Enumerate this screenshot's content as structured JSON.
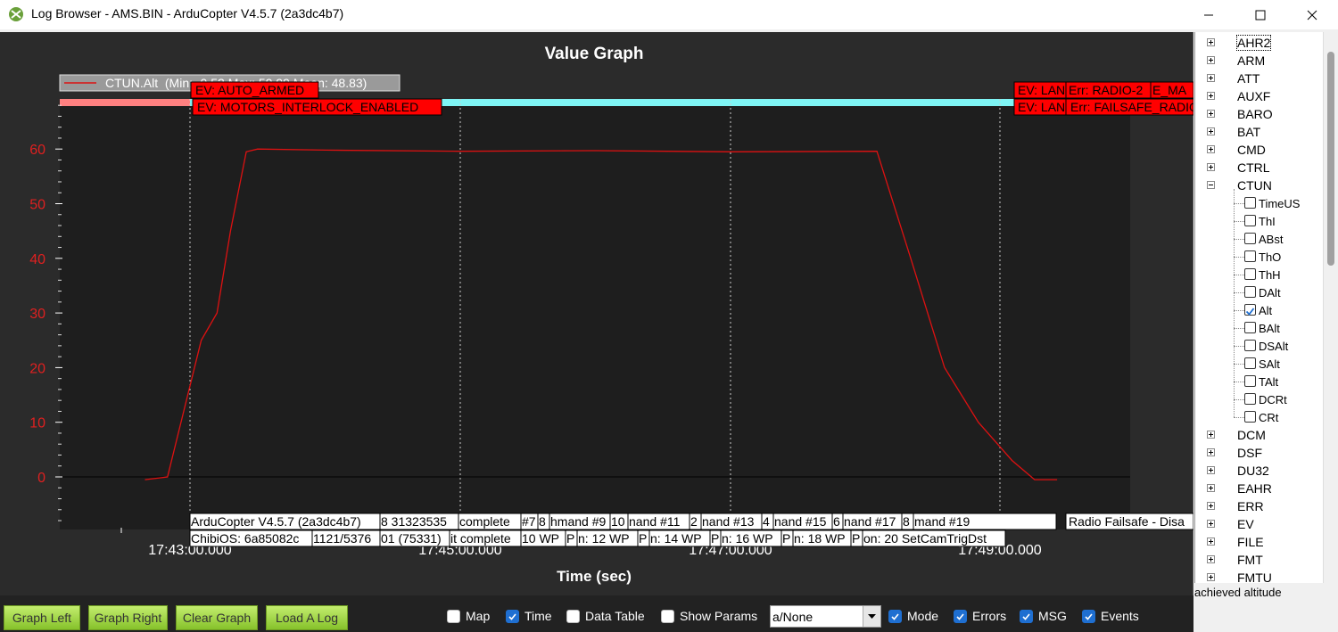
{
  "window": {
    "title": "Log Browser - AMS.BIN - ArduCopter V4.5.7 (2a3dc4b7)"
  },
  "graph": {
    "title": "Value Graph",
    "xlabel": "Time (sec)",
    "legend": "CTUN.Alt  (Min: -0.52 Max: 59.99 Mean: 48.83)",
    "yticks": [
      "60",
      "50",
      "40",
      "30",
      "20",
      "10",
      "0"
    ],
    "xticks": [
      "17:43:00.000",
      "17:45:00.000",
      "17:47:00.000",
      "17:49:00.000"
    ],
    "events_top": [
      "EV: AUTO_ARMED",
      "EV: MOTORS_INTERLOCK_ENABLED"
    ],
    "events_right": [
      "EV: LAND",
      "Err: RADIO-2",
      "E_MA",
      "EV: LAND",
      "Err: FAILSAFE_RADIO"
    ],
    "msgs_row1": [
      "ArduCopter V4.5.7 (2a3dc4b7)",
      "8 31323535",
      "complete",
      "#7",
      "8",
      "hmand #9",
      "10",
      "nand #11",
      "2",
      "nand #13",
      "4",
      "nand #15",
      "6",
      "nand #17",
      "8",
      "mand #19"
    ],
    "msgs_row2": [
      "ChibiOS: 6a85082c",
      "1121/5376",
      "01 (75331)",
      "it complete",
      "10 WP",
      "P",
      "n: 12 WP",
      "P",
      "n: 14 WP",
      "P",
      "n: 16 WP",
      "P",
      "n: 18 WP",
      "P",
      "on: 20 SetCamTrigDst"
    ],
    "msg_right": "Radio Failsafe - Disa"
  },
  "chart_data": {
    "type": "line",
    "title": "Value Graph",
    "xlabel": "Time (sec)",
    "ylabel": "",
    "x": [
      "17:42:40",
      "17:42:50",
      "17:43:05",
      "17:43:12",
      "17:43:18",
      "17:43:25",
      "17:43:30",
      "17:44:00",
      "17:45:00",
      "17:46:00",
      "17:47:00",
      "17:48:05",
      "17:48:20",
      "17:48:35",
      "17:48:50",
      "17:49:05",
      "17:49:15",
      "17:49:25"
    ],
    "series": [
      {
        "name": "CTUN.Alt",
        "values": [
          -0.5,
          0,
          25,
          30,
          45,
          59.5,
          60,
          59.8,
          59.6,
          59.7,
          59.5,
          59.6,
          40,
          20,
          10,
          3,
          -0.5,
          -0.5
        ]
      }
    ],
    "ylim": [
      -10,
      70
    ],
    "grid": false,
    "legend": "top-left"
  },
  "buttons": {
    "graph_left": "Graph Left",
    "graph_right": "Graph Right",
    "clear_graph": "Clear Graph",
    "load_log": "Load A Log"
  },
  "checkboxes": [
    {
      "label": "Map",
      "checked": false
    },
    {
      "label": "Time",
      "checked": true
    },
    {
      "label": "Data Table",
      "checked": false
    },
    {
      "label": "Show Params",
      "checked": false
    },
    {
      "label": "Mode",
      "checked": true
    },
    {
      "label": "Errors",
      "checked": true
    },
    {
      "label": "MSG",
      "checked": true
    },
    {
      "label": "Events",
      "checked": true
    }
  ],
  "combo": {
    "value": "a/None"
  },
  "tree": {
    "top_items": [
      "AHR2",
      "ARM",
      "ATT",
      "AUXF",
      "BARO",
      "BAT",
      "CMD",
      "CTRL",
      "CTUN"
    ],
    "ctun_fields": [
      {
        "label": "TimeUS",
        "checked": false
      },
      {
        "label": "ThI",
        "checked": false
      },
      {
        "label": "ABst",
        "checked": false
      },
      {
        "label": "ThO",
        "checked": false
      },
      {
        "label": "ThH",
        "checked": false
      },
      {
        "label": "DAlt",
        "checked": false
      },
      {
        "label": "Alt",
        "checked": true
      },
      {
        "label": "BAlt",
        "checked": false
      },
      {
        "label": "DSAlt",
        "checked": false
      },
      {
        "label": "SAlt",
        "checked": false
      },
      {
        "label": "TAlt",
        "checked": false
      },
      {
        "label": "DCRt",
        "checked": false
      },
      {
        "label": "CRt",
        "checked": false
      }
    ],
    "bottom_items": [
      "DCM",
      "DSF",
      "DU32",
      "EAHR",
      "ERR",
      "EV",
      "FILE",
      "FMT",
      "FMTU"
    ]
  },
  "status": {
    "text": "achieved altitude"
  },
  "colors": {
    "series": "#dd1111",
    "event_bg": "#ff0000",
    "mode_bar_1": "#ff8080",
    "mode_bar_2": "#7ff5f5",
    "button_green": "#9ad63a"
  }
}
